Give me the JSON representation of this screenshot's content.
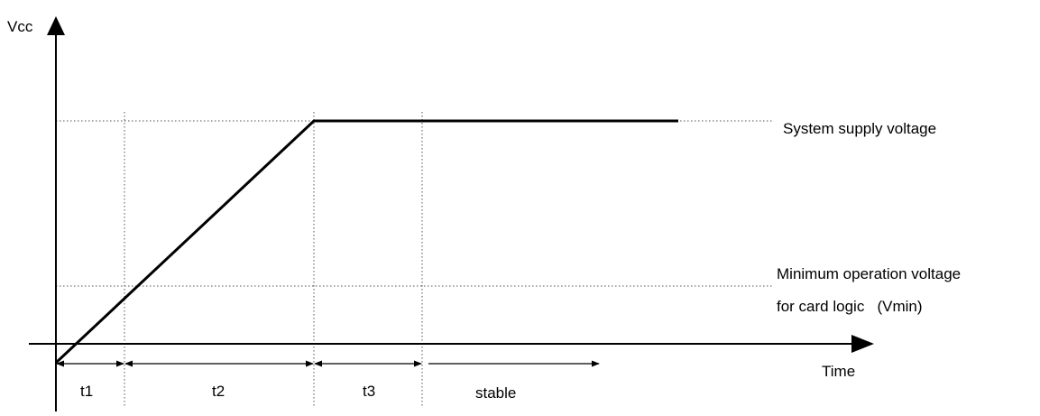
{
  "axes": {
    "y_label": "Vcc",
    "x_label": "Time"
  },
  "levels": {
    "system": "System supply voltage",
    "vmin_line1": "Minimum operation voltage",
    "vmin_line2": "for card logic   (Vmin)"
  },
  "intervals": [
    {
      "label": "t1"
    },
    {
      "label": "t2"
    },
    {
      "label": "t3"
    },
    {
      "label": "stable"
    }
  ],
  "colors": {
    "line": "#000000",
    "guide": "#555555"
  }
}
